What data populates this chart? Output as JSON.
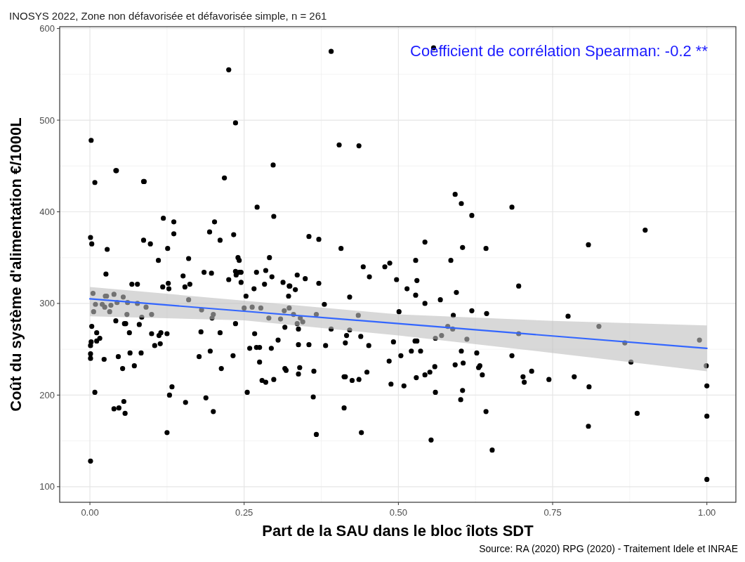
{
  "chart_data": {
    "type": "scatter",
    "title": "INOSYS 2022, Zone non défavorisée et défavorisée simple, n = 261",
    "xlabel": "Part de la SAU dans le bloc îlots SDT",
    "ylabel": "Coût du système d'alimentation €/1000L",
    "annotations": [
      "Coefficient de corrélation Spearman: -0.2 **",
      "Source: RA (2020) RPG (2020) - Traitement Idele et INRAE"
    ],
    "xlim": [
      -0.049,
      1.047
    ],
    "ylim": [
      83,
      602
    ],
    "xticks": [
      {
        "value": 0,
        "label": "0.00"
      },
      {
        "value": 0.25,
        "label": "0.25"
      },
      {
        "value": 0.5,
        "label": "0.50"
      },
      {
        "value": 0.75,
        "label": "0.75"
      },
      {
        "value": 1,
        "label": "1.00"
      }
    ],
    "yticks": [
      100,
      200,
      300,
      400,
      500,
      600
    ],
    "grid": true,
    "series": [
      {
        "color": "#000000",
        "marker": "circle",
        "x": [
          0.225,
          0.236,
          0.404,
          0.002,
          0.218,
          0.042,
          0.087,
          0.008,
          0.043,
          0.088,
          0.297,
          0.271,
          0.298,
          0.119,
          0.136,
          0.202,
          0.194,
          0.136,
          0.233,
          0.001,
          0.003,
          0.087,
          0.098,
          0.211,
          0.028,
          0.126,
          0.111,
          0.16,
          0.24,
          0.242,
          0.291,
          0.436,
          0.592,
          0.602,
          0.619,
          0.355,
          0.371,
          0.407,
          0.543,
          0.604,
          0.642,
          0.528,
          0.585,
          0.486,
          0.478,
          0.443,
          0.391,
          0.557,
          0.684,
          0.808,
          0.9,
          0.026,
          0.068,
          0.077,
          0.005,
          0.025,
          0.027,
          0.039,
          0.054,
          0.044,
          0.009,
          0.02,
          0.024,
          0.034,
          0.061,
          0.077,
          0.091,
          0.006,
          0.032,
          0.06,
          0.1,
          0.084,
          0.003,
          0.042,
          0.056,
          0.058,
          0.08,
          0.011,
          0.064,
          0.1,
          0.125,
          0.115,
          0.112,
          0.016,
          0.011,
          0.002,
          0.001,
          0.105,
          0.114,
          0.001,
          0.001,
          0.023,
          0.046,
          0.065,
          0.083,
          0.072,
          0.053,
          0.008,
          0.055,
          0.039,
          0.047,
          0.057,
          0.125,
          0.001,
          0.133,
          0.129,
          0.155,
          0.151,
          0.162,
          0.154,
          0.127,
          0.118,
          0.128,
          0.16,
          0.185,
          0.197,
          0.225,
          0.236,
          0.242,
          0.237,
          0.245,
          0.245,
          0.27,
          0.285,
          0.295,
          0.283,
          0.266,
          0.313,
          0.323,
          0.253,
          0.322,
          0.181,
          0.2,
          0.198,
          0.25,
          0.263,
          0.277,
          0.315,
          0.323,
          0.29,
          0.309,
          0.236,
          0.18,
          0.211,
          0.267,
          0.316,
          0.305,
          0.259,
          0.27,
          0.275,
          0.294,
          0.177,
          0.195,
          0.232,
          0.213,
          0.275,
          0.316,
          0.318,
          0.279,
          0.285,
          0.298,
          0.255,
          0.188,
          0.2,
          0.336,
          0.349,
          0.324,
          0.333,
          0.371,
          0.38,
          0.33,
          0.341,
          0.345,
          0.336,
          0.338,
          0.367,
          0.391,
          0.338,
          0.355,
          0.382,
          0.414,
          0.416,
          0.421,
          0.439,
          0.452,
          0.435,
          0.421,
          0.453,
          0.497,
          0.514,
          0.528,
          0.53,
          0.543,
          0.568,
          0.594,
          0.501,
          0.589,
          0.619,
          0.643,
          0.58,
          0.588,
          0.57,
          0.56,
          0.611,
          0.492,
          0.527,
          0.53,
          0.521,
          0.536,
          0.504,
          0.485,
          0.602,
          0.627,
          0.592,
          0.605,
          0.559,
          0.551,
          0.543,
          0.529,
          0.488,
          0.509,
          0.63,
          0.632,
          0.636,
          0.56,
          0.604,
          0.601,
          0.642,
          0.652,
          0.553,
          0.44,
          0.367,
          0.412,
          0.362,
          0.363,
          0.338,
          0.34,
          0.412,
          0.414,
          0.425,
          0.436,
          0.449,
          0.695,
          0.775,
          0.825,
          0.695,
          0.867,
          0.988,
          0.684,
          0.877,
          0.999,
          0.716,
          0.702,
          0.704,
          0.744,
          0.785,
          0.809,
          1.0,
          0.887,
          0.808,
          1.0,
          1.0
        ],
        "values": [
          555,
          497,
          473,
          478,
          437,
          445,
          433,
          432,
          445,
          433,
          451,
          405,
          395,
          393,
          389,
          389,
          378,
          376,
          375,
          372,
          365,
          369,
          365,
          369,
          359,
          360,
          347,
          349,
          350,
          347,
          350,
          472,
          419,
          409,
          396,
          373,
          370,
          360,
          367,
          361,
          360,
          347,
          347,
          344,
          340,
          340,
          575,
          579,
          405,
          364,
          380,
          332,
          321,
          321,
          311,
          308,
          308,
          310,
          307,
          301,
          299,
          299,
          296,
          298,
          301,
          300,
          296,
          291,
          291,
          288,
          288,
          285,
          275,
          281,
          278,
          278,
          277,
          268,
          268,
          267,
          267,
          268,
          265,
          262,
          259,
          258,
          254,
          254,
          256,
          245,
          240,
          239,
          242,
          246,
          246,
          232,
          229,
          203,
          193,
          185,
          186,
          180,
          159,
          128,
          209,
          200,
          192,
          330,
          321,
          318,
          322,
          318,
          316,
          304,
          334,
          333,
          326,
          335,
          334,
          331,
          334,
          323,
          334,
          336,
          329,
          321,
          316,
          323,
          319,
          308,
          308,
          293,
          288,
          284,
          295,
          296,
          295,
          292,
          295,
          284,
          283,
          278,
          269,
          268,
          267,
          274,
          260,
          251,
          252,
          252,
          251,
          242,
          248,
          243,
          229,
          236,
          229,
          227,
          216,
          214,
          217,
          203,
          197,
          182,
          331,
          327,
          319,
          315,
          322,
          299,
          288,
          284,
          280,
          278,
          272,
          288,
          272,
          255,
          255,
          254,
          257,
          265,
          271,
          264,
          254,
          287,
          307,
          329,
          326,
          316,
          309,
          325,
          300,
          304,
          312,
          291,
          287,
          292,
          289,
          275,
          272,
          265,
          262,
          261,
          258,
          259,
          259,
          248,
          248,
          243,
          237,
          248,
          246,
          233,
          235,
          231,
          225,
          222,
          219,
          212,
          210,
          230,
          232,
          222,
          203,
          205,
          195,
          182,
          140,
          151,
          159,
          157,
          186,
          198,
          226,
          223,
          230,
          220,
          220,
          216,
          217,
          225,
          319,
          286,
          275,
          267,
          257,
          260,
          243,
          236,
          232,
          226,
          220,
          214,
          217,
          220,
          209,
          210,
          180,
          166,
          177,
          108
        ]
      },
      {
        "type": "line",
        "color": "#3366ff",
        "marker": "none",
        "line_style": "solid",
        "x": [
          0,
          0.25,
          0.5,
          0.75,
          1
        ],
        "values": [
          305,
          291.5,
          278,
          264.5,
          251
        ],
        "lower": [
          286,
          281.5,
          265,
          246,
          226
        ],
        "upper": [
          318,
          303,
          288,
          281,
          276
        ]
      }
    ]
  }
}
